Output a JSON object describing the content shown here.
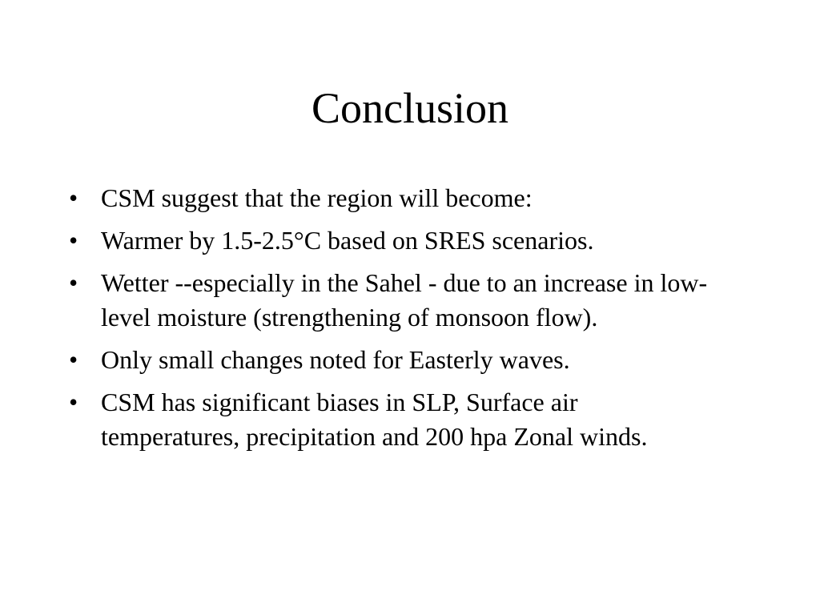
{
  "title": "Conclusion",
  "bullets": [
    "CSM suggest that the region will become:",
    "Warmer by 1.5-2.5°C based on SRES scenarios.",
    "Wetter --especially in the Sahel - due to an increase in low-level moisture (strengthening of monsoon flow).",
    "Only small changes noted for Easterly waves.",
    "CSM has significant biases in SLP, Surface air temperatures, precipitation and 200 hpa Zonal winds."
  ]
}
